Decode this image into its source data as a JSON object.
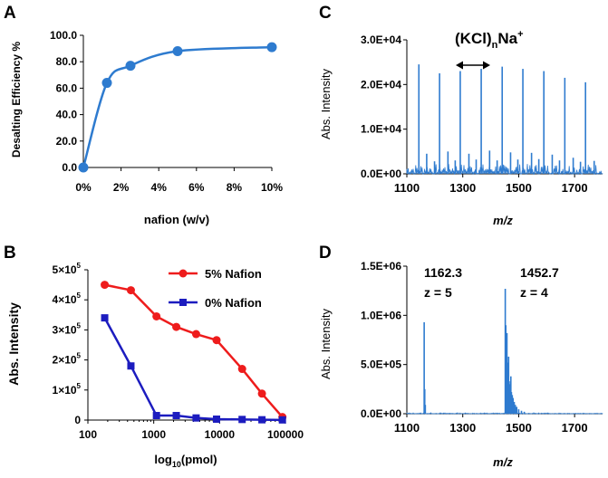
{
  "chart_data": [
    {
      "panel": "A",
      "type": "line",
      "title": "",
      "xlabel": "nafion (w/v)",
      "ylabel": "Desalting Efficiency %",
      "x_ticks": [
        "0%",
        "2%",
        "4%",
        "6%",
        "8%",
        "10%"
      ],
      "y_ticks": [
        "0.0",
        "20.0",
        "40.0",
        "60.0",
        "80.0",
        "100.0"
      ],
      "xlim": [
        0,
        10
      ],
      "ylim": [
        0,
        100
      ],
      "x": [
        0,
        1.25,
        2.5,
        5,
        10
      ],
      "values": [
        0,
        64,
        77,
        88,
        91
      ],
      "color": "#2e7bcf"
    },
    {
      "panel": "B",
      "type": "line",
      "xscale": "log",
      "xlabel_prefix": "log",
      "xlabel_sub": "10",
      "xlabel_suffix": "(pmol)",
      "ylabel": "Abs. Intensity",
      "x_ticks": [
        "100",
        "1000",
        "10000",
        "100000"
      ],
      "y_tick_values": [
        0,
        100000,
        200000,
        300000,
        400000,
        500000
      ],
      "y_tick_labels": [
        {
          "label": "0",
          "mant": "",
          "exp": ""
        },
        {
          "label": "",
          "mant": "1×10",
          "exp": "5"
        },
        {
          "label": "",
          "mant": "2×10",
          "exp": "5"
        },
        {
          "label": "",
          "mant": "3×10",
          "exp": "5"
        },
        {
          "label": "",
          "mant": "4×10",
          "exp": "5"
        },
        {
          "label": "",
          "mant": "5×10",
          "exp": "5"
        }
      ],
      "xlim": [
        100,
        100000
      ],
      "ylim": [
        0,
        500000
      ],
      "legend_position": "top-right",
      "series": [
        {
          "name": "5% Nafion",
          "color": "#ee1c1c",
          "marker": "circle",
          "x": [
            180,
            450,
            1100,
            2200,
            4400,
            9000,
            22000,
            44000,
            90000
          ],
          "values": [
            450000,
            432000,
            345000,
            310000,
            286000,
            266000,
            170000,
            88000,
            10000
          ]
        },
        {
          "name": "0% Nafion",
          "color": "#1c1cbf",
          "marker": "square",
          "x": [
            180,
            450,
            1100,
            2200,
            4400,
            9000,
            22000,
            44000,
            90000
          ],
          "values": [
            340000,
            180000,
            15000,
            15000,
            7000,
            3000,
            2000,
            1000,
            500
          ]
        }
      ]
    },
    {
      "panel": "C",
      "type": "bar",
      "subtype": "mass-spectrum",
      "xlabel": "m/z",
      "ylabel": "Abs. Intensity",
      "x_ticks": [
        "1100",
        "1300",
        "1500",
        "1700"
      ],
      "y_ticks": [
        "0.0E+00",
        "1.0E+04",
        "2.0E+04",
        "3.0E+04"
      ],
      "xlim": [
        1100,
        1800
      ],
      "ylim": [
        0,
        30000
      ],
      "annotation": {
        "base": "(KCl)",
        "sub": "n",
        "tail": "Na",
        "sup": "+"
      },
      "color": "#2e7bcf",
      "peaks": [
        [
          1143,
          24500
        ],
        [
          1217,
          22500
        ],
        [
          1291,
          23000
        ],
        [
          1366,
          23500
        ],
        [
          1441,
          24000
        ],
        [
          1515,
          23500
        ],
        [
          1590,
          23000
        ],
        [
          1665,
          21500
        ],
        [
          1739,
          20500
        ],
        [
          1171,
          4500
        ],
        [
          1199,
          2800
        ],
        [
          1247,
          5000
        ],
        [
          1273,
          3000
        ],
        [
          1322,
          4500
        ],
        [
          1348,
          3200
        ],
        [
          1396,
          5200
        ],
        [
          1423,
          3000
        ],
        [
          1471,
          4800
        ],
        [
          1497,
          3200
        ],
        [
          1546,
          4700
        ],
        [
          1572,
          3300
        ],
        [
          1620,
          4300
        ],
        [
          1646,
          3000
        ],
        [
          1695,
          3600
        ],
        [
          1721,
          2700
        ],
        [
          1770,
          2900
        ]
      ]
    },
    {
      "panel": "D",
      "type": "bar",
      "subtype": "mass-spectrum",
      "xlabel": "m/z",
      "ylabel": "Abs. Intensity",
      "x_ticks": [
        "1100",
        "1300",
        "1500",
        "1700"
      ],
      "y_ticks": [
        "0.0E+00",
        "5.0E+05",
        "1.0E+06",
        "1.5E+06"
      ],
      "xlim": [
        1100,
        1800
      ],
      "ylim": [
        0,
        1500000
      ],
      "color": "#2e7bcf",
      "annotations": [
        {
          "mz": "1162.3",
          "charge": "z = 5"
        },
        {
          "mz": "1452.7",
          "charge": "z = 4"
        }
      ],
      "peaks": [
        [
          1162,
          930000
        ],
        [
          1164,
          250000
        ],
        [
          1166,
          90000
        ],
        [
          1452,
          1270000
        ],
        [
          1454,
          900000
        ],
        [
          1456,
          660000
        ],
        [
          1458,
          820000
        ],
        [
          1460,
          520000
        ],
        [
          1462,
          460000
        ],
        [
          1464,
          580000
        ],
        [
          1466,
          330000
        ],
        [
          1468,
          300000
        ],
        [
          1470,
          260000
        ],
        [
          1472,
          380000
        ],
        [
          1474,
          220000
        ],
        [
          1477,
          190000
        ],
        [
          1480,
          160000
        ],
        [
          1484,
          120000
        ],
        [
          1488,
          90000
        ],
        [
          1493,
          70000
        ],
        [
          1500,
          45000
        ],
        [
          1510,
          30000
        ],
        [
          1520,
          20000
        ]
      ]
    }
  ],
  "panels": {
    "a": {
      "letter": "A"
    },
    "b": {
      "letter": "B"
    },
    "c": {
      "letter": "C"
    },
    "d": {
      "letter": "D"
    }
  }
}
